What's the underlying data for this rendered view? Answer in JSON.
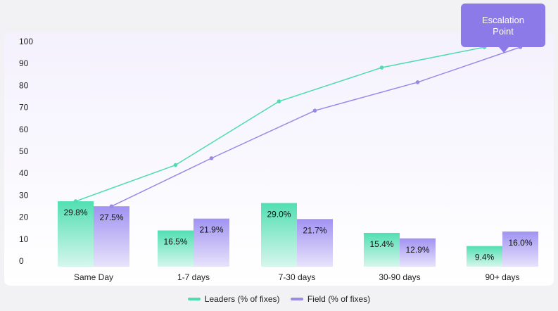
{
  "chart_data": {
    "type": "bar",
    "categories": [
      "Same Day",
      "1-7 days",
      "7-30 days",
      "30-90 days",
      "90+ days"
    ],
    "series": [
      {
        "name": "Leaders (% of fixes)",
        "values": [
          29.8,
          16.5,
          29.0,
          15.4,
          9.4
        ],
        "labels": [
          "29.8%",
          "16.5%",
          "29.0%",
          "15.4%",
          "9.4%"
        ],
        "cumulative": [
          29.8,
          46.3,
          75.3,
          90.7,
          100
        ]
      },
      {
        "name": "Field (% of fixes)",
        "values": [
          27.5,
          21.9,
          21.7,
          12.9,
          16.0
        ],
        "labels": [
          "27.5%",
          "21.9%",
          "21.7%",
          "12.9%",
          "16.0%"
        ],
        "cumulative": [
          27.5,
          49.4,
          71.1,
          84.0,
          100
        ]
      }
    ],
    "yticks": [
      "0",
      "10",
      "20",
      "30",
      "40",
      "50",
      "60",
      "70",
      "80",
      "90",
      "100"
    ],
    "ylim": [
      0,
      100
    ],
    "legend_position": "bottom-center",
    "annotation": {
      "text": "Escalation Point",
      "target": "90+ days"
    },
    "colors": {
      "leaders": "#5ee3b8",
      "leaders_line": "#4fdcaf",
      "field": "#a99cf2",
      "field_line": "#9a8ae6",
      "accent": "#8b7ae8"
    }
  }
}
